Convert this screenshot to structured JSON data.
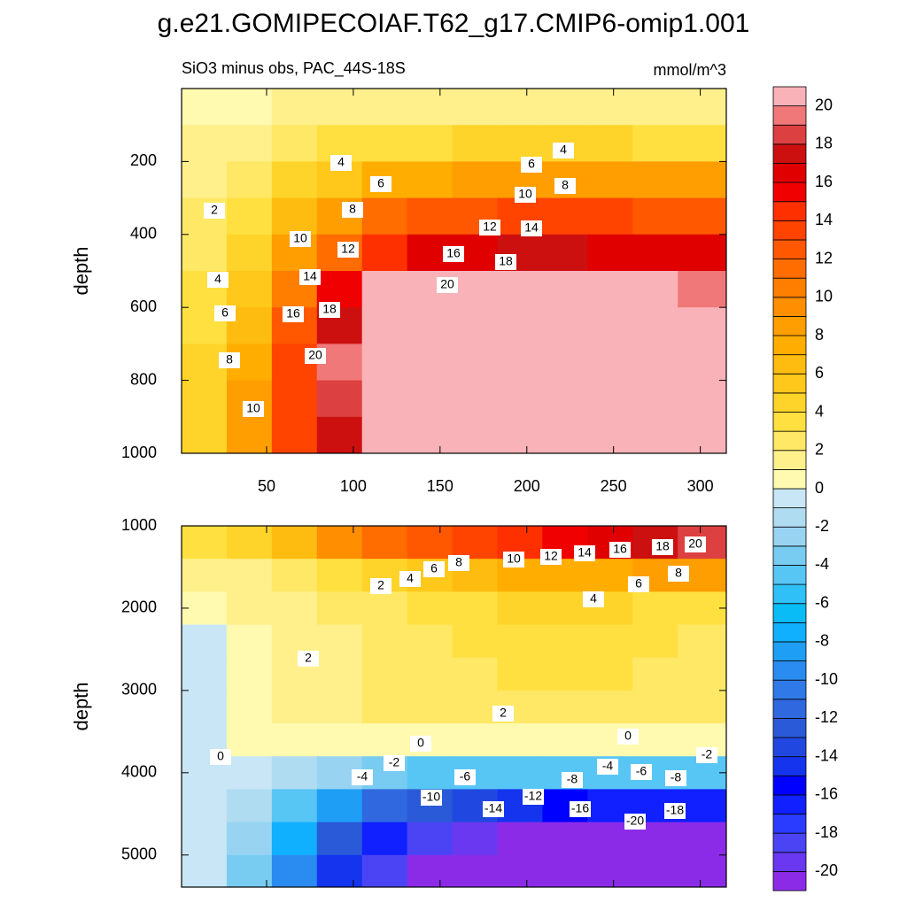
{
  "title": "g.e21.GOMIPECOIAF.T62_g17.CMIP6-omip1.001",
  "chart_data": [
    {
      "type": "contour",
      "subtitle": "SiO3 minus obs, PAC_44S-18S",
      "units": "mmol/m^3",
      "ylabel": "depth",
      "xlim": [
        1,
        315
      ],
      "ylim": [
        1000,
        0
      ],
      "xticks": [
        50,
        100,
        150,
        200,
        250,
        300
      ],
      "yticks": [
        200,
        400,
        600,
        800,
        1000
      ],
      "x": [
        14,
        40,
        66,
        92,
        118,
        144,
        170,
        196,
        222,
        248,
        274,
        300
      ],
      "y": [
        50,
        150,
        250,
        350,
        450,
        550,
        650,
        750,
        850,
        950
      ],
      "z": [
        [
          0.5,
          0.5,
          1,
          1.5,
          1.5,
          1.5,
          1.5,
          1.5,
          1.5,
          1.5,
          1.5,
          1.5
        ],
        [
          1,
          1.5,
          2,
          3,
          3,
          3,
          4,
          4,
          4,
          4,
          3.5,
          3.5
        ],
        [
          1.5,
          2.5,
          4,
          5,
          7,
          7.5,
          8,
          8,
          8.5,
          8,
          8,
          8
        ],
        [
          2,
          3.5,
          6,
          8.5,
          11,
          12,
          12.5,
          13,
          13.5,
          13,
          12.5,
          12.5
        ],
        [
          2.5,
          4.5,
          8,
          11.5,
          14,
          16,
          16.5,
          17,
          17,
          16.5,
          16.5,
          16.5
        ],
        [
          3,
          5.5,
          10,
          15,
          20.5,
          21,
          21,
          21,
          21,
          21,
          21,
          19
        ],
        [
          3.5,
          6.5,
          12,
          17,
          21,
          21,
          21,
          21,
          21,
          21,
          21,
          21
        ],
        [
          4,
          7.5,
          13,
          19,
          21,
          21,
          21,
          21,
          21,
          21,
          21,
          21
        ],
        [
          4,
          8,
          13,
          18.5,
          21,
          21,
          21,
          21,
          21,
          21,
          21,
          21
        ],
        [
          4,
          8.5,
          13,
          17.5,
          20,
          21,
          21,
          21,
          21,
          21,
          21,
          21
        ]
      ],
      "contour_labels": [
        4,
        6,
        4,
        8,
        6,
        10,
        2,
        8,
        12,
        14,
        10,
        12,
        16,
        18,
        14,
        20,
        4,
        16,
        18,
        6,
        20,
        8,
        10
      ]
    },
    {
      "type": "contour",
      "ylabel": "depth",
      "xlim": [
        1,
        315
      ],
      "ylim": [
        5390,
        1000
      ],
      "yticks": [
        1000,
        2000,
        3000,
        4000,
        5000
      ],
      "x": [
        14,
        40,
        66,
        92,
        118,
        144,
        170,
        196,
        222,
        248,
        274,
        300
      ],
      "y": [
        1200,
        1600,
        2000,
        2400,
        2800,
        3200,
        3600,
        4000,
        4400,
        4800,
        5200
      ],
      "z": [
        [
          3,
          4,
          6,
          9,
          11,
          12,
          13,
          14,
          15,
          16,
          17,
          18
        ],
        [
          1,
          1.5,
          2,
          3,
          4,
          5,
          6,
          7,
          7,
          7,
          8,
          8
        ],
        [
          0.5,
          1,
          1.5,
          2,
          2.5,
          3,
          3.5,
          4,
          4,
          4,
          3.5,
          3
        ],
        [
          -0.5,
          0.5,
          1,
          1.5,
          2,
          2.5,
          3,
          3.5,
          3.5,
          3.5,
          3,
          2.5
        ],
        [
          -0.5,
          0.5,
          1,
          1.5,
          2,
          2.5,
          2.5,
          3,
          3,
          3,
          2.5,
          2.5
        ],
        [
          -0.5,
          0.5,
          1,
          1.5,
          2,
          2,
          2,
          2,
          2,
          2,
          2,
          2
        ],
        [
          -0.5,
          0.2,
          0.5,
          0.5,
          0.5,
          0.5,
          0.5,
          0.5,
          0.5,
          0.5,
          0.5,
          0.2
        ],
        [
          -0.5,
          -1,
          -2,
          -3,
          -4,
          -4.5,
          -5,
          -5,
          -5,
          -5,
          -5,
          -4.5
        ],
        [
          -0.5,
          -2,
          -5,
          -9,
          -12,
          -13,
          -14,
          -15,
          -16,
          -17,
          -17,
          -17
        ],
        [
          -0.5,
          -3,
          -8,
          -13,
          -17,
          -19,
          -20,
          -20.5,
          -21,
          -21,
          -21,
          -21
        ],
        [
          -0.5,
          -4,
          -10,
          -15,
          -19,
          -21,
          -21,
          -21,
          -21,
          -21,
          -21,
          -21
        ]
      ],
      "contour_labels": [
        20,
        18,
        16,
        14,
        12,
        10,
        8,
        6,
        8,
        6,
        4,
        2,
        4,
        2,
        2,
        0,
        0,
        0,
        -2,
        -2,
        -4,
        -6,
        -8,
        -4,
        -6,
        -8,
        -10,
        -12,
        -14,
        -16,
        -18,
        -20
      ]
    }
  ],
  "colorbar": {
    "levels": [
      -20,
      -19,
      -18,
      -17,
      -16,
      -15,
      -14,
      -13,
      -12,
      -11,
      -10,
      -9,
      -8,
      -7,
      -6,
      -5,
      -4,
      -3,
      -2,
      -1,
      0,
      1,
      2,
      3,
      4,
      5,
      6,
      7,
      8,
      9,
      10,
      11,
      12,
      13,
      14,
      15,
      16,
      17,
      18,
      19,
      20
    ],
    "ticks": [
      -20,
      -18,
      -16,
      -14,
      -12,
      -10,
      -8,
      -6,
      -4,
      -2,
      0,
      2,
      4,
      6,
      8,
      10,
      12,
      14,
      16,
      18,
      20
    ],
    "colors": [
      "#8b2be8",
      "#6a38f0",
      "#4a44f5",
      "#2a3cff",
      "#1020ff",
      "#0000ff",
      "#1434ee",
      "#2048e0",
      "#2a5ad8",
      "#3068e0",
      "#2f7ae8",
      "#2a8cf0",
      "#1f9ef5",
      "#10b0ff",
      "#0abcf6",
      "#30c0f8",
      "#58c6f5",
      "#78ccf2",
      "#98d4f2",
      "#b0dcf2",
      "#c8e6f5",
      "#fffab0",
      "#fff08c",
      "#ffe866",
      "#ffe040",
      "#ffd42a",
      "#ffc81a",
      "#ffbc10",
      "#ffae00",
      "#ff9e00",
      "#ff8e00",
      "#ff7e00",
      "#ff6c00",
      "#ff5800",
      "#ff4400",
      "#ff3000",
      "#f00000",
      "#e00000",
      "#cc1010",
      "#dd4040",
      "#f07878",
      "#f9b2b8"
    ]
  }
}
